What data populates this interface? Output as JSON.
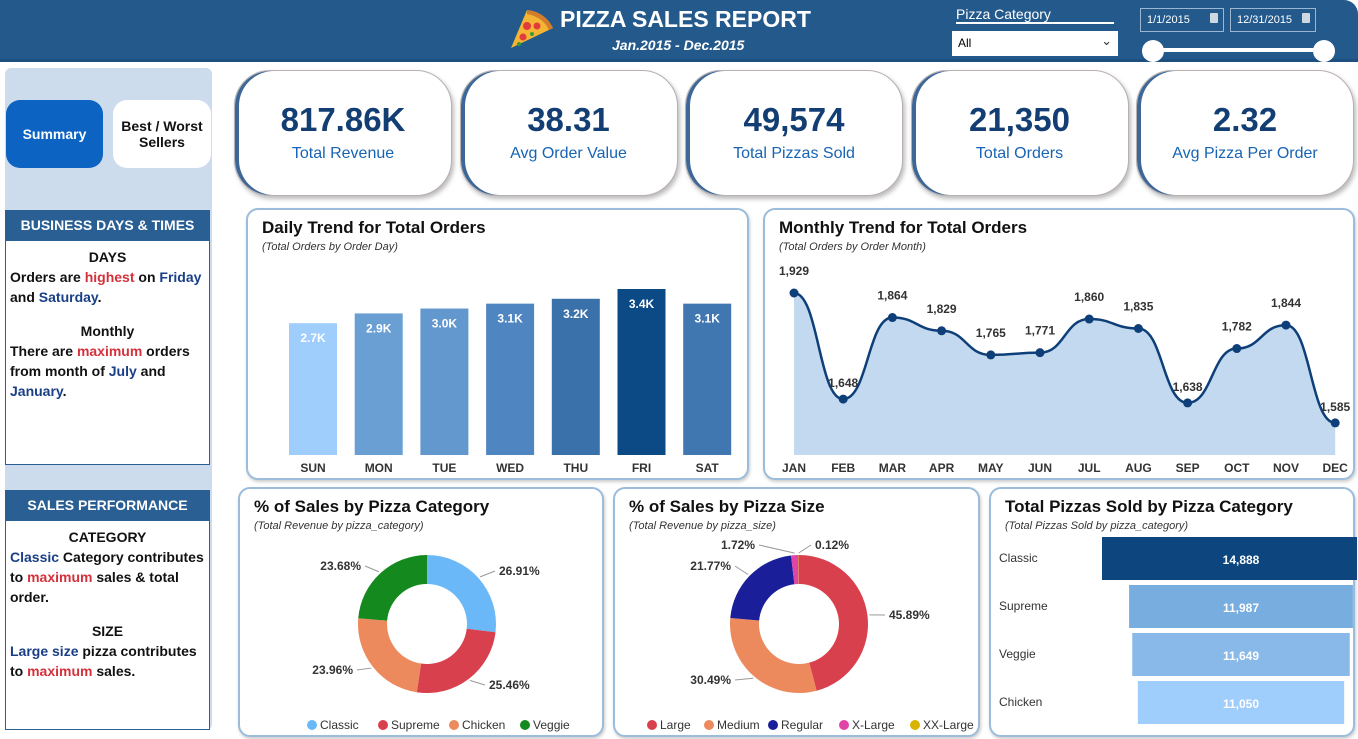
{
  "header": {
    "title": "PIZZA SALES REPORT",
    "subtitle": "Jan.2015 - Dec.2015",
    "logo_icon": "pizza-slice-icon",
    "category_filter": {
      "label": "Pizza Category",
      "value": "All"
    },
    "date_range": {
      "start": "1/1/2015",
      "end": "12/31/2015"
    }
  },
  "nav": {
    "summary": "Summary",
    "best_worst": "Best / Worst Sellers"
  },
  "left": {
    "business": {
      "heading": "BUSINESS DAYS & TIMES",
      "blocks": [
        {
          "title": "DAYS",
          "segments": [
            {
              "t": "Orders are "
            },
            {
              "t": "highest",
              "c": "red"
            },
            {
              "t": " on "
            },
            {
              "t": "Friday",
              "c": "blue"
            },
            {
              "t": " and "
            },
            {
              "t": "Saturday",
              "c": "blue"
            },
            {
              "t": "."
            }
          ]
        },
        {
          "title": "Monthly",
          "segments": [
            {
              "t": "There are "
            },
            {
              "t": "maximum",
              "c": "red"
            },
            {
              "t": " orders from month of "
            },
            {
              "t": "July",
              "c": "blue"
            },
            {
              "t": " and "
            },
            {
              "t": "January",
              "c": "blue"
            },
            {
              "t": "."
            }
          ]
        }
      ]
    },
    "sales": {
      "heading": "SALES PERFORMANCE",
      "blocks": [
        {
          "title": "CATEGORY",
          "segments": [
            {
              "t": "Classic",
              "c": "blue"
            },
            {
              "t": " Category contributes to "
            },
            {
              "t": "maximum",
              "c": "red"
            },
            {
              "t": " sales & total order."
            }
          ]
        },
        {
          "title": "SIZE",
          "segments": [
            {
              "t": "Large size",
              "c": "blue"
            },
            {
              "t": " pizza contributes to "
            },
            {
              "t": "maximum",
              "c": "red"
            },
            {
              "t": " sales."
            }
          ]
        }
      ]
    }
  },
  "kpis": [
    {
      "value": "817.86K",
      "label": "Total Revenue"
    },
    {
      "value": "38.31",
      "label": "Avg Order Value"
    },
    {
      "value": "49,574",
      "label": "Total Pizzas Sold"
    },
    {
      "value": "21,350",
      "label": "Total Orders"
    },
    {
      "value": "2.32",
      "label": "Avg Pizza Per Order"
    }
  ],
  "chart_data": [
    {
      "type": "bar",
      "title": "Daily Trend for Total Orders",
      "subtitle": "(Total Orders by Order Day)",
      "categories": [
        "SUN",
        "MON",
        "TUE",
        "WED",
        "THU",
        "FRI",
        "SAT"
      ],
      "values": [
        2700,
        2900,
        3000,
        3100,
        3200,
        3400,
        3100
      ],
      "labels": [
        "2.7K",
        "2.9K",
        "3.0K",
        "3.1K",
        "3.2K",
        "3.4K",
        "3.1K"
      ],
      "colors": [
        "#9fcdfc",
        "#6a9fd4",
        "#6398cf",
        "#4f86c1",
        "#3a71aa",
        "#0c4a86",
        "#4077b1"
      ],
      "ylim": [
        0,
        3400
      ]
    },
    {
      "type": "area",
      "title": "Monthly Trend for Total Orders",
      "subtitle": "(Total Orders by Order Month)",
      "categories": [
        "JAN",
        "FEB",
        "MAR",
        "APR",
        "MAY",
        "JUN",
        "JUL",
        "AUG",
        "SEP",
        "OCT",
        "NOV",
        "DEC"
      ],
      "values": [
        1929,
        1648,
        1864,
        1829,
        1765,
        1771,
        1860,
        1835,
        1638,
        1782,
        1844,
        1585
      ],
      "labels": [
        "1,929",
        "1,648",
        "1,864",
        "1,829",
        "1,765",
        "1,771",
        "1,860",
        "1,835",
        "1,638",
        "1,782",
        "1,844",
        "1,585"
      ],
      "ylim": [
        1500,
        1929
      ],
      "line_color": "#0e3f78",
      "fill_color": "#c3d9f0"
    },
    {
      "type": "pie",
      "title": "% of Sales by Pizza Category",
      "subtitle": "(Total Revenue by pizza_category)",
      "categories": [
        "Classic",
        "Supreme",
        "Chicken",
        "Veggie"
      ],
      "values": [
        26.91,
        25.46,
        23.96,
        23.68
      ],
      "labels": [
        "26.91%",
        "25.46%",
        "23.96%",
        "23.68%"
      ],
      "colors": [
        "#6bb8f8",
        "#d9404d",
        "#ec8a5e",
        "#148a1e"
      ],
      "legend": "bottom"
    },
    {
      "type": "pie",
      "title": "% of Sales by Pizza Size",
      "subtitle": "(Total Revenue by pizza_size)",
      "categories": [
        "Large",
        "Medium",
        "Regular",
        "X-Large",
        "XX-Large"
      ],
      "values": [
        45.89,
        30.49,
        21.77,
        1.72,
        0.12
      ],
      "labels": [
        "45.89%",
        "30.49%",
        "21.77%",
        "1.72%",
        "0.12%"
      ],
      "colors": [
        "#d9404d",
        "#ec8a5e",
        "#1a1f99",
        "#e044a7",
        "#d9b300"
      ],
      "legend": "bottom"
    },
    {
      "type": "bar",
      "orientation": "funnel",
      "title": "Total Pizzas Sold by Pizza Category",
      "subtitle": "(Total Pizzas Sold by pizza_category)",
      "categories": [
        "Classic",
        "Supreme",
        "Veggie",
        "Chicken"
      ],
      "values": [
        14888,
        11987,
        11649,
        11050
      ],
      "labels": [
        "14,888",
        "11,987",
        "11,649",
        "11,050"
      ],
      "colors": [
        "#0d467f",
        "#78addf",
        "#88b9e8",
        "#9fcdfc"
      ]
    }
  ]
}
